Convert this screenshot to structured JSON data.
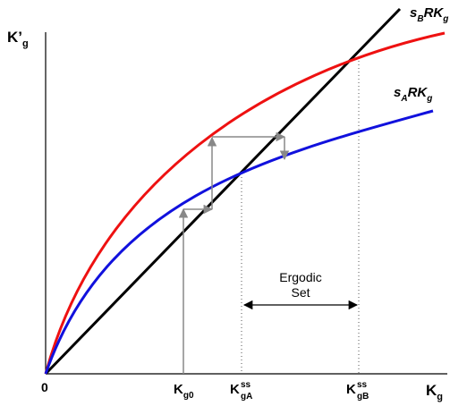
{
  "axes": {
    "y_label_main": "K’",
    "y_label_sub": "g",
    "x_label_main": "K",
    "x_label_sub": "g",
    "origin": "0"
  },
  "curves": {
    "upper": {
      "label_s": "s",
      "label_s_sub": "B",
      "label_rest": "RK",
      "label_rest_sub": "g",
      "color": "#ee1111"
    },
    "lower": {
      "label_s": "s",
      "label_s_sub": "A",
      "label_rest": "RK",
      "label_rest_sub": "g",
      "color": "#1111dd"
    },
    "line": {
      "color": "#000000"
    }
  },
  "ticks": {
    "k0": {
      "main": "K",
      "sub": "g0",
      "sup": ""
    },
    "kA": {
      "main": "K",
      "sub": "gA",
      "sup": "ss"
    },
    "kB": {
      "main": "K",
      "sub": "gB",
      "sup": "ss"
    }
  },
  "ergodic": {
    "line1": "Ergodic",
    "line2": "Set"
  },
  "colors": {
    "arrows": "#888888",
    "axis": "#000000",
    "dotted": "#555555"
  }
}
